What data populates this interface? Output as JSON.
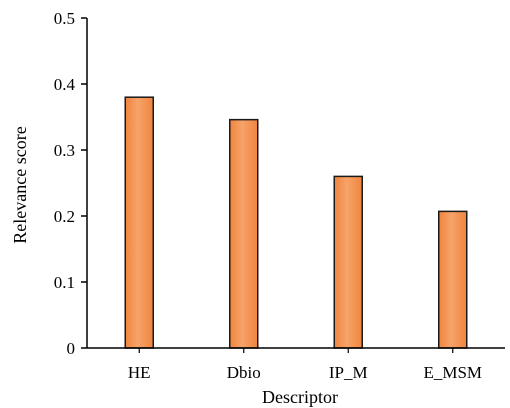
{
  "chart_data": {
    "type": "bar",
    "title": "",
    "xlabel": "Descriptor",
    "ylabel": "Relevance score",
    "categories": [
      "HE",
      "Dbio",
      "IP_M",
      "E_MSM"
    ],
    "values": [
      0.38,
      0.346,
      0.26,
      0.207
    ],
    "ylim": [
      0,
      0.5
    ],
    "yticks": [
      "0",
      "0.1",
      "0.2",
      "0.3",
      "0.4",
      "0.5"
    ],
    "grid": false,
    "bar_color": "#f0843c",
    "bar_highlight": "#f6a36a",
    "bar_edge": "#1a1a1a"
  }
}
